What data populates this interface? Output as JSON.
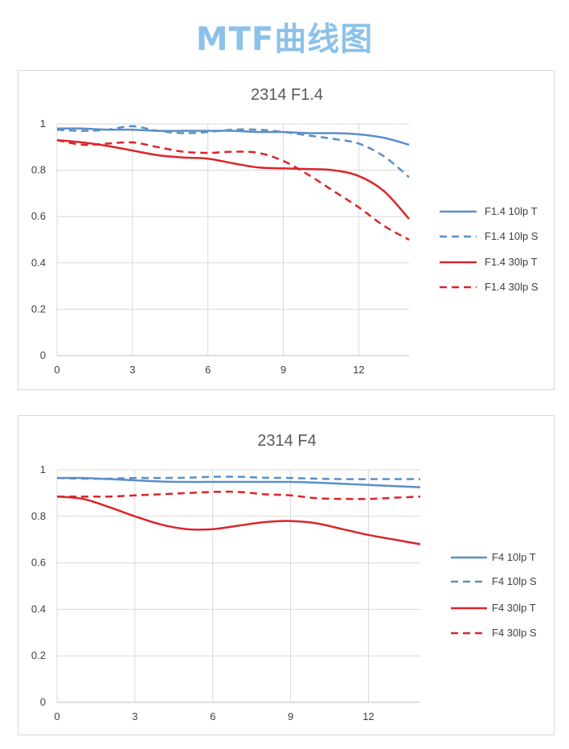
{
  "page_title": "MTF曲线图",
  "colors": {
    "blue": "#5b8fc7",
    "red": "#d9262a",
    "title": "#8cc2ea"
  },
  "chart_data": [
    {
      "type": "line",
      "title": "2314 F1.4",
      "xlabel": "",
      "ylabel": "",
      "xlim": [
        0,
        14
      ],
      "ylim": [
        0,
        1
      ],
      "x_ticks": [
        "0",
        "3",
        "6",
        "9",
        "12"
      ],
      "y_ticks": [
        "0",
        "0.2",
        "0.4",
        "0.6",
        "0.8",
        "1"
      ],
      "grid": true,
      "legend_position": "right",
      "x": [
        0,
        1,
        2,
        3,
        4,
        5,
        6,
        7,
        8,
        9,
        10,
        11,
        12,
        13,
        14
      ],
      "series": [
        {
          "name": "F1.4 10lp T",
          "color": "blue",
          "dash": false,
          "values": [
            0.98,
            0.98,
            0.975,
            0.975,
            0.97,
            0.97,
            0.97,
            0.97,
            0.965,
            0.965,
            0.96,
            0.96,
            0.955,
            0.94,
            0.91
          ]
        },
        {
          "name": "F1.4 10lp S",
          "color": "blue",
          "dash": true,
          "values": [
            0.975,
            0.97,
            0.975,
            0.99,
            0.97,
            0.96,
            0.965,
            0.975,
            0.975,
            0.965,
            0.95,
            0.935,
            0.915,
            0.86,
            0.77
          ]
        },
        {
          "name": "F1.4 30lp T",
          "color": "red",
          "dash": false,
          "values": [
            0.93,
            0.92,
            0.905,
            0.885,
            0.865,
            0.855,
            0.85,
            0.83,
            0.812,
            0.808,
            0.805,
            0.8,
            0.775,
            0.71,
            0.59
          ]
        },
        {
          "name": "F1.4 30lp S",
          "color": "red",
          "dash": true,
          "values": [
            0.93,
            0.91,
            0.915,
            0.92,
            0.9,
            0.88,
            0.875,
            0.88,
            0.875,
            0.84,
            0.78,
            0.71,
            0.64,
            0.56,
            0.5
          ]
        }
      ]
    },
    {
      "type": "line",
      "title": "2314 F4",
      "xlabel": "",
      "ylabel": "",
      "xlim": [
        0,
        14
      ],
      "ylim": [
        0,
        1
      ],
      "x_ticks": [
        "0",
        "3",
        "6",
        "9",
        "12"
      ],
      "y_ticks": [
        "0",
        "0.2",
        "0.4",
        "0.6",
        "0.8",
        "1"
      ],
      "grid": true,
      "legend_position": "right",
      "x": [
        0,
        1,
        2,
        3,
        4,
        5,
        6,
        7,
        8,
        9,
        10,
        11,
        12,
        13,
        14
      ],
      "series": [
        {
          "name": "F4 10lp T",
          "color": "blue",
          "dash": false,
          "values": [
            0.965,
            0.965,
            0.96,
            0.955,
            0.95,
            0.948,
            0.948,
            0.948,
            0.948,
            0.948,
            0.945,
            0.94,
            0.935,
            0.93,
            0.925
          ]
        },
        {
          "name": "F4 10lp S",
          "color": "blue",
          "dash": true,
          "values": [
            0.965,
            0.962,
            0.962,
            0.965,
            0.965,
            0.966,
            0.97,
            0.97,
            0.966,
            0.965,
            0.962,
            0.96,
            0.96,
            0.96,
            0.96
          ]
        },
        {
          "name": "F4 30lp T",
          "color": "red",
          "dash": false,
          "values": [
            0.885,
            0.875,
            0.84,
            0.8,
            0.765,
            0.745,
            0.745,
            0.76,
            0.775,
            0.78,
            0.77,
            0.745,
            0.72,
            0.7,
            0.68
          ]
        },
        {
          "name": "F4 30lp S",
          "color": "red",
          "dash": true,
          "values": [
            0.885,
            0.885,
            0.885,
            0.89,
            0.895,
            0.9,
            0.905,
            0.905,
            0.895,
            0.89,
            0.878,
            0.875,
            0.875,
            0.88,
            0.885
          ]
        }
      ]
    }
  ]
}
